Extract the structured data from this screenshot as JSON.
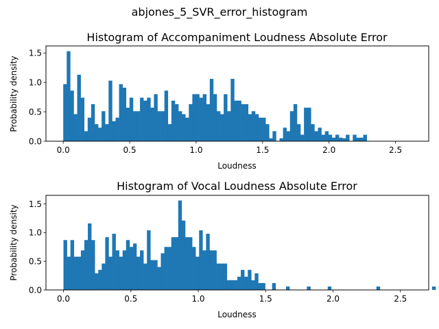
{
  "figure_title": "abjones_5_SVR_error_histogram",
  "bar_color": "#1f77b4",
  "chart_data": [
    {
      "type": "bar",
      "title": "Histogram of Accompaniment Loudness Absolute Error",
      "xlabel": "Loudness",
      "ylabel": "Probability density",
      "xlim": [
        -0.13,
        2.75
      ],
      "ylim": [
        0,
        1.62
      ],
      "xticks": [
        0.0,
        0.5,
        1.0,
        1.5,
        2.0,
        2.5
      ],
      "xtick_labels": [
        "0.0",
        "0.5",
        "1.0",
        "1.5",
        "2.0",
        "2.5"
      ],
      "yticks": [
        0.0,
        0.5,
        1.0,
        1.5
      ],
      "ytick_labels": [
        "0.0",
        "0.5",
        "1.0",
        "1.5"
      ],
      "bin_start": 0.0,
      "bin_width": 0.02625,
      "values": [
        0.97,
        1.53,
        0.86,
        0.46,
        1.13,
        0.74,
        0.17,
        0.4,
        0.63,
        0.29,
        0.23,
        0.51,
        0.29,
        1.03,
        0.34,
        0.4,
        0.97,
        0.91,
        0.57,
        0.74,
        0.51,
        0.51,
        0.74,
        0.69,
        0.74,
        0.57,
        0.8,
        0.51,
        0.51,
        0.86,
        0.29,
        0.69,
        0.63,
        0.51,
        0.46,
        0.4,
        0.63,
        0.8,
        0.8,
        0.74,
        0.8,
        0.63,
        1.06,
        0.8,
        0.51,
        0.46,
        0.8,
        0.51,
        1.06,
        0.69,
        0.69,
        0.63,
        0.63,
        0.46,
        0.51,
        0.46,
        0.4,
        0.4,
        0.29,
        0.05,
        0.17,
        0.0,
        0.05,
        0.23,
        0.17,
        0.51,
        0.63,
        0.29,
        0.11,
        0.57,
        0.57,
        0.29,
        0.17,
        0.23,
        0.11,
        0.17,
        0.11,
        0.06,
        0.11,
        0.06,
        0.05,
        0.11,
        0.0,
        0.11,
        0.06,
        0.06,
        0.11,
        0.0,
        0.0,
        0.0,
        0.0,
        0.0,
        0.0,
        0.0,
        0.0,
        0.0,
        0.0,
        0.0,
        0.0,
        0.0,
        0.0,
        0.0,
        0.0,
        0.0,
        0.0,
        0.0,
        0.0,
        0.0,
        0.0,
        0.0,
        0.0,
        0.0,
        0.0,
        0.0,
        0.0,
        0.0,
        0.0,
        0.0,
        0.0,
        0.0,
        0.0,
        0.0,
        0.05,
        0.05,
        0.0,
        0.0,
        0.0,
        0.0,
        0.0,
        0.0,
        0.0,
        0.0,
        0.0,
        0.0,
        0.0,
        0.0,
        0.0,
        0.0,
        0.0,
        0.0,
        0.0,
        0.0,
        0.0,
        0.0,
        0.0,
        0.0,
        0.0,
        0.0,
        0.0,
        0.0,
        0.0,
        0.0,
        0.0,
        0.0,
        0.11
      ]
    },
    {
      "type": "bar",
      "title": "Histogram of Vocal Loudness Absolute Error",
      "xlabel": "Loudness",
      "ylabel": "Probability density",
      "xlim": [
        -0.13,
        2.71
      ],
      "ylim": [
        0,
        1.65
      ],
      "xticks": [
        0.0,
        0.5,
        1.0,
        1.5,
        2.0,
        2.5
      ],
      "xtick_labels": [
        "0.0",
        "0.5",
        "1.0",
        "1.5",
        "2.0",
        "2.5"
      ],
      "yticks": [
        0.0,
        0.5,
        1.0,
        1.5
      ],
      "ytick_labels": [
        "0.0",
        "0.5",
        "1.0",
        "1.5"
      ],
      "bin_start": 0.0,
      "bin_width": 0.0258,
      "values": [
        0.87,
        0.58,
        0.87,
        0.58,
        0.58,
        0.69,
        0.87,
        1.16,
        0.87,
        0.29,
        0.35,
        0.46,
        0.92,
        0.58,
        0.98,
        0.69,
        0.58,
        0.69,
        0.87,
        0.75,
        0.81,
        0.58,
        0.69,
        0.46,
        1.04,
        0.52,
        0.52,
        0.4,
        0.64,
        0.75,
        0.75,
        0.92,
        0.92,
        1.56,
        1.21,
        0.92,
        0.92,
        0.75,
        0.58,
        1.04,
        0.69,
        0.98,
        0.69,
        0.69,
        0.46,
        0.46,
        0.46,
        0.17,
        0.17,
        0.17,
        0.23,
        0.35,
        0.23,
        0.35,
        0.17,
        0.29,
        0.12,
        0.12,
        0.0,
        0.0,
        0.12,
        0.0,
        0.0,
        0.0,
        0.06,
        0.0,
        0.0,
        0.0,
        0.0,
        0.0,
        0.06,
        0.0,
        0.0,
        0.0,
        0.0,
        0.0,
        0.06,
        0.0,
        0.0,
        0.0,
        0.0,
        0.0,
        0.0,
        0.0,
        0.0,
        0.0,
        0.0,
        0.0,
        0.0,
        0.0,
        0.06,
        0.0,
        0.0,
        0.0,
        0.0,
        0.0,
        0.0,
        0.0,
        0.0,
        0.0,
        0.0,
        0.0,
        0.0,
        0.0,
        0.0,
        0.0,
        0.06,
        0.0,
        0.0,
        0.0,
        0.0,
        0.0,
        0.06,
        0.0,
        0.0,
        0.0,
        0.0,
        0.0,
        0.0,
        0.0,
        0.0,
        0.0,
        0.0,
        0.0,
        0.0,
        0.0,
        0.0,
        0.0,
        0.0,
        0.0,
        0.0,
        0.0,
        0.06,
        0.0,
        0.0,
        0.0,
        0.0,
        0.0,
        0.0,
        0.0,
        0.0,
        0.0,
        0.0,
        0.0,
        0.0,
        0.0,
        0.0,
        0.0,
        0.0,
        0.0,
        0.0,
        0.0,
        0.0,
        0.0,
        0.0,
        0.0,
        0.0,
        0.0,
        0.06
      ]
    }
  ]
}
